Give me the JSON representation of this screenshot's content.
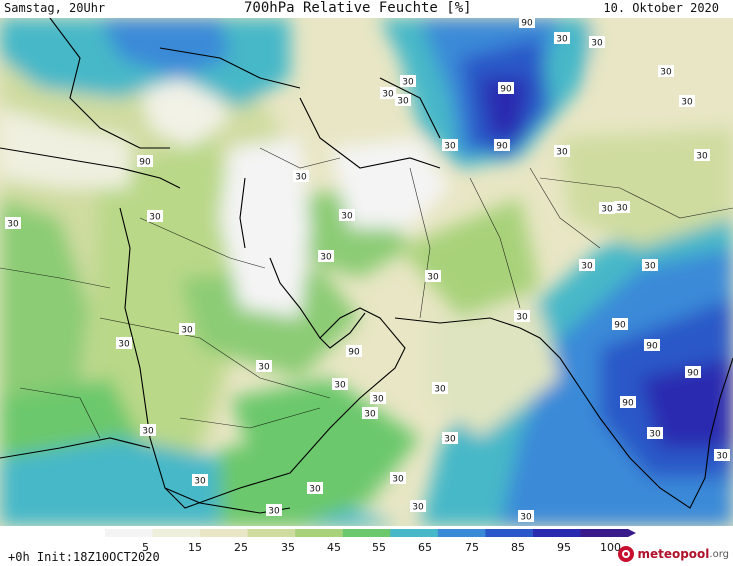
{
  "header": {
    "left": "Samstag, 20Uhr",
    "center": "700hPa Relative Feuchte [%]",
    "right": "10. Oktober 2020"
  },
  "colorbar": {
    "ticks": [
      "5",
      "15",
      "25",
      "35",
      "45",
      "55",
      "65",
      "75",
      "85",
      "95",
      "100"
    ],
    "colors": [
      "#f4f4f4",
      "#eef0dc",
      "#e8e6c4",
      "#cfdca0",
      "#a8d27a",
      "#6cc86c",
      "#46b8c8",
      "#3a8ad8",
      "#2a58c8",
      "#2a2ab0",
      "#3a1a8a"
    ]
  },
  "footer": {
    "init": "+0h Init:18Z10OCT2020",
    "logo_name": "meteopool",
    "logo_domain": ".org"
  },
  "contour_labels": [
    "90",
    "30",
    "30",
    "30",
    "30",
    "30",
    "90",
    "30",
    "30",
    "90",
    "30",
    "30",
    "30",
    "90",
    "30",
    "30",
    "30",
    "30",
    "30",
    "30",
    "30",
    "30",
    "30",
    "30",
    "30",
    "30",
    "30",
    "30",
    "90",
    "90",
    "90",
    "90",
    "90",
    "30",
    "30",
    "30",
    "30",
    "30",
    "30",
    "30",
    "30",
    "30",
    "30",
    "30",
    "30",
    "30",
    "30"
  ]
}
